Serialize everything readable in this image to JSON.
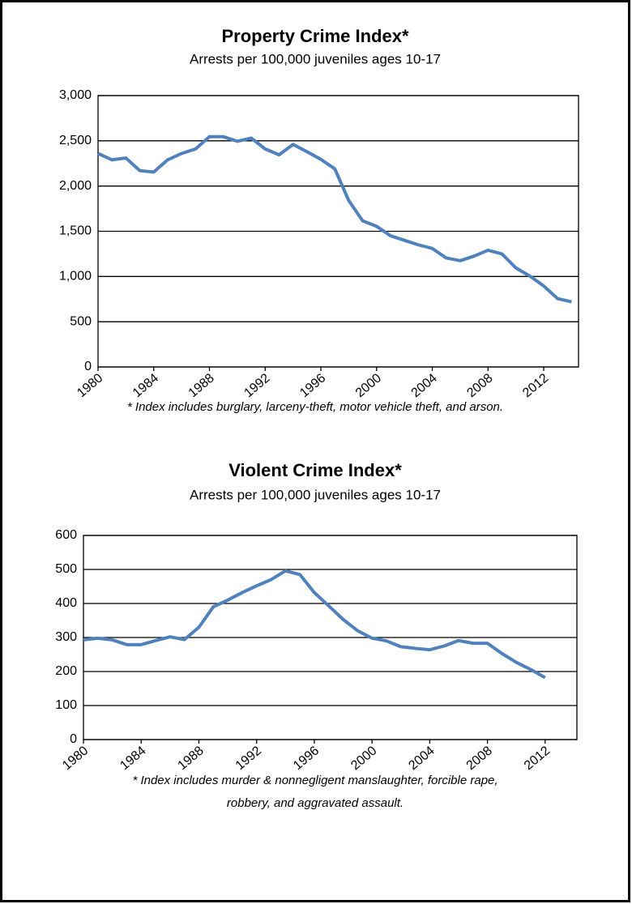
{
  "chart_data": [
    {
      "type": "line",
      "title": "Property Crime Index*",
      "subtitle": "Arrests per 100,000 juveniles ages 10-17",
      "x": [
        1980,
        1981,
        1982,
        1983,
        1984,
        1985,
        1986,
        1987,
        1988,
        1989,
        1990,
        1991,
        1992,
        1993,
        1994,
        1995,
        1996,
        1997,
        1998,
        1999,
        2000,
        2001,
        2002,
        2003,
        2004,
        2005,
        2006,
        2007,
        2008,
        2009,
        2010,
        2011,
        2012,
        2013,
        2014
      ],
      "series": [
        {
          "color": "#4f81bd",
          "values": [
            2360,
            2290,
            2310,
            2170,
            2155,
            2290,
            2360,
            2410,
            2545,
            2545,
            2495,
            2530,
            2410,
            2345,
            2460,
            2380,
            2295,
            2190,
            1840,
            1615,
            1555,
            1450,
            1400,
            1350,
            1310,
            1205,
            1175,
            1225,
            1290,
            1250,
            1095,
            1005,
            895,
            755,
            720
          ]
        }
      ],
      "xlim": [
        1980,
        2014.5
      ],
      "xticks": [
        1980,
        1984,
        1988,
        1992,
        1996,
        2000,
        2004,
        2008,
        2012
      ],
      "ylim": [
        0,
        3000
      ],
      "yticks": [
        0,
        {
          "value": 500,
          "label": "500"
        },
        {
          "value": 1000,
          "label": "1,000"
        },
        {
          "value": 1500,
          "label": "1,500"
        },
        {
          "value": 2000,
          "label": "2,000"
        },
        {
          "value": 2500,
          "label": "2,500"
        },
        {
          "value": 3000,
          "label": "3,000"
        }
      ],
      "grid": true,
      "note": [
        "* Index includes burglary,  larceny-theft, motor vehicle theft, and arson."
      ]
    },
    {
      "type": "line",
      "title": "Violent Crime Index*",
      "subtitle": "Arrests per 100,000 juveniles ages 10-17",
      "x": [
        1980,
        1981,
        1982,
        1983,
        1984,
        1985,
        1986,
        1987,
        1988,
        1989,
        1990,
        1991,
        1992,
        1993,
        1994,
        1995,
        1996,
        1997,
        1998,
        1999,
        2000,
        2001,
        2002,
        2003,
        2004,
        2005,
        2006,
        2007,
        2008,
        2009,
        2010,
        2011,
        2012
      ],
      "series": [
        {
          "color": "#4f81bd",
          "values": [
            293,
            298,
            293,
            279,
            279,
            291,
            302,
            294,
            330,
            390,
            410,
            432,
            452,
            470,
            496,
            485,
            432,
            393,
            353,
            320,
            298,
            290,
            273,
            268,
            264,
            275,
            291,
            283,
            283,
            253,
            227,
            206,
            182
          ]
        }
      ],
      "xlim": [
        1980,
        2014.2
      ],
      "xticks": [
        1980,
        1984,
        1988,
        1992,
        1996,
        2000,
        2004,
        2008,
        2012
      ],
      "ylim": [
        0,
        600
      ],
      "yticks": [
        0,
        100,
        200,
        300,
        400,
        500,
        600
      ],
      "grid": true,
      "note": [
        "* Index includes murder & nonnegligent manslaughter, forcible rape,",
        "robbery, and aggravated assault."
      ]
    }
  ]
}
